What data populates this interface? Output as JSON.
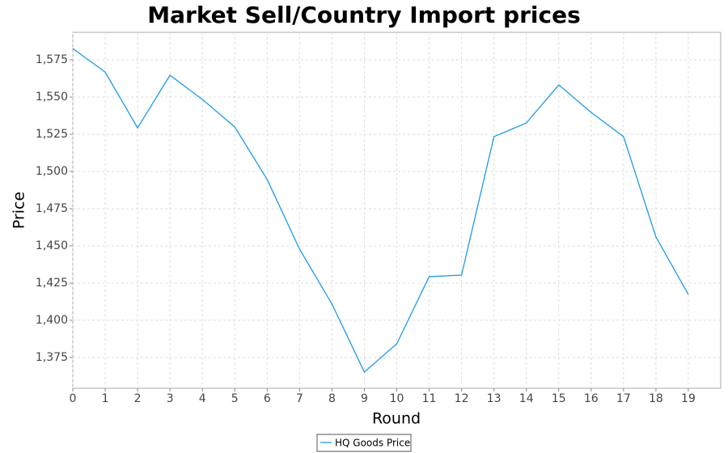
{
  "chart_data": {
    "type": "line",
    "title": "Market Sell/Country Import prices",
    "x_label": "Round",
    "y_label": "Price",
    "x": [
      0,
      1,
      2,
      3,
      4,
      5,
      6,
      7,
      8,
      9,
      10,
      11,
      12,
      13,
      14,
      15,
      16,
      17,
      18,
      19
    ],
    "series": [
      {
        "name": "HQ Goods Price",
        "color": "#1f9ae6",
        "values": [
          1582.6,
          1566.8,
          1529.3,
          1564.7,
          1548.4,
          1529.9,
          1494.6,
          1447.8,
          1410.9,
          1365.2,
          1384.2,
          1429.3,
          1430.4,
          1523.4,
          1532.6,
          1558.2,
          1539.7,
          1523.4,
          1456.0,
          1417.4
        ]
      }
    ],
    "xlim": [
      0,
      20
    ],
    "xticks": [
      0,
      1,
      2,
      3,
      4,
      5,
      6,
      7,
      8,
      9,
      10,
      11,
      12,
      13,
      14,
      15,
      16,
      17,
      18,
      19
    ],
    "ylim": [
      1354.3,
      1593.5
    ],
    "yticks": [
      {
        "value": 1375,
        "label": "1,375"
      },
      {
        "value": 1400,
        "label": "1,400"
      },
      {
        "value": 1425,
        "label": "1,425"
      },
      {
        "value": 1450,
        "label": "1,450"
      },
      {
        "value": 1475,
        "label": "1,475"
      },
      {
        "value": 1500,
        "label": "1,500"
      },
      {
        "value": 1525,
        "label": "1,525"
      },
      {
        "value": 1550,
        "label": "1,550"
      },
      {
        "value": 1575,
        "label": "1,575"
      }
    ],
    "grid": true,
    "legend": "bottom"
  }
}
